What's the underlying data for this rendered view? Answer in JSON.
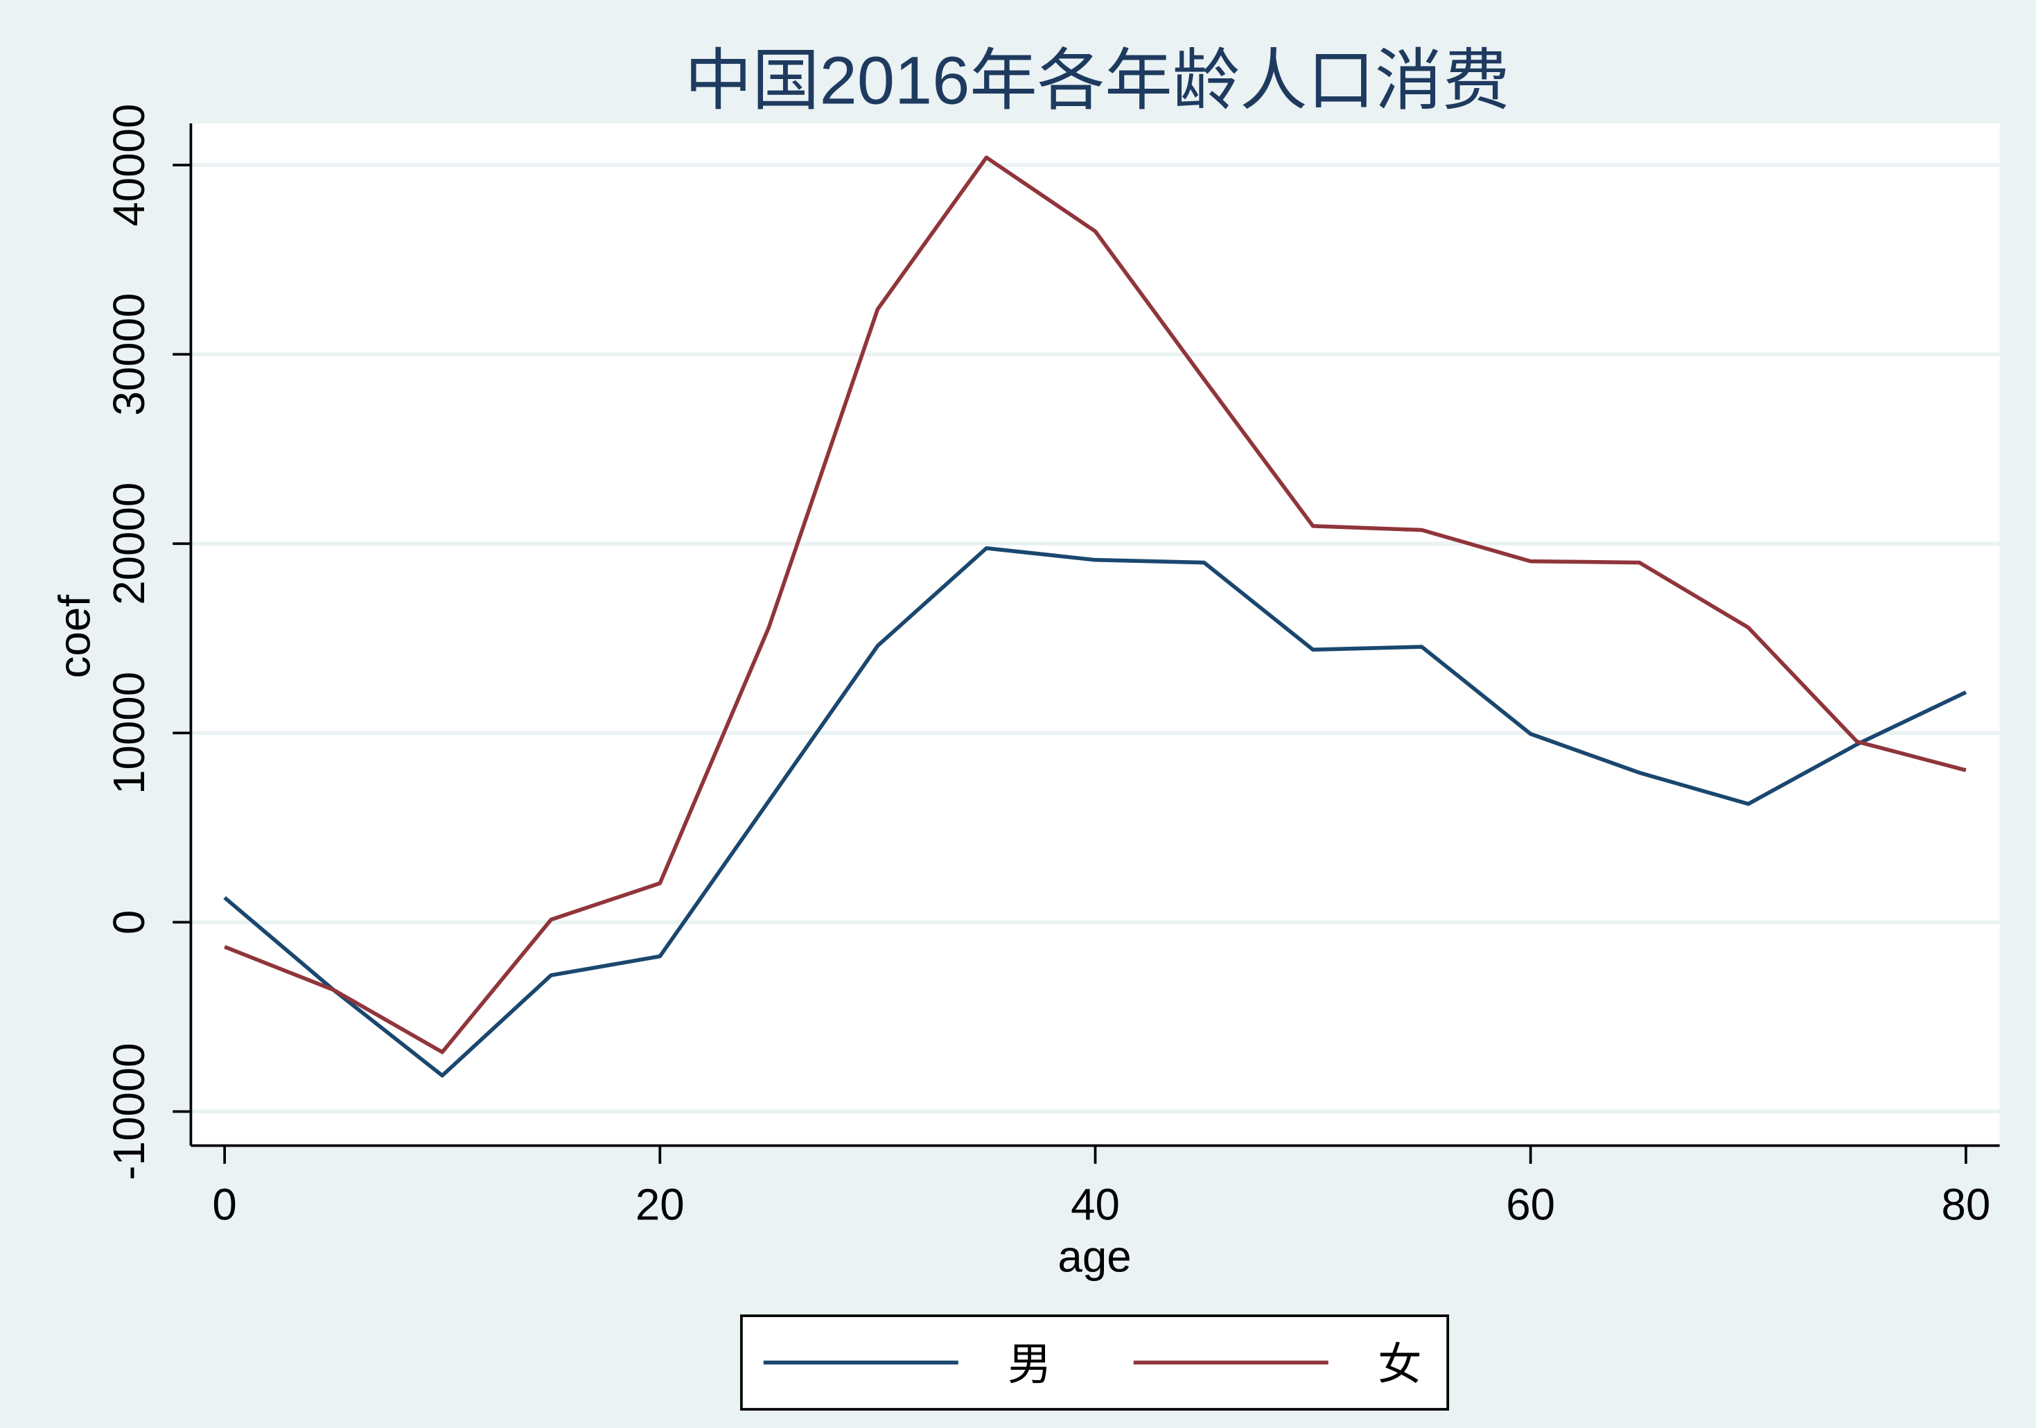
{
  "chart_data": {
    "type": "line",
    "title": "中国2016年各年龄人口消费",
    "x_label": "age",
    "y_label": "coef",
    "x": [
      0,
      5,
      10,
      15,
      20,
      25,
      30,
      35,
      40,
      45,
      50,
      55,
      60,
      65,
      70,
      75,
      80
    ],
    "series": [
      {
        "name": "男",
        "color": "#1a476f",
        "values": [
          1300,
          -3570,
          -8100,
          -2800,
          -1800,
          6400,
          14600,
          19760,
          19140,
          19000,
          14400,
          14550,
          9950,
          7900,
          6250,
          9400,
          12150
        ]
      },
      {
        "name": "女",
        "color": "#90353b",
        "values": [
          -1300,
          -3570,
          -6860,
          140,
          2060,
          15570,
          32380,
          40400,
          36500,
          28680,
          20930,
          20720,
          19070,
          19000,
          15570,
          9540,
          8030
        ]
      }
    ],
    "xlim": [
      -1.55,
      81.55
    ],
    "ylim": [
      -11800,
      42200
    ],
    "xticks": [
      0,
      20,
      40,
      60,
      80
    ],
    "yticks": [
      -10000,
      0,
      10000,
      20000,
      30000,
      40000
    ],
    "grid": true,
    "legend_position": "bottom"
  }
}
